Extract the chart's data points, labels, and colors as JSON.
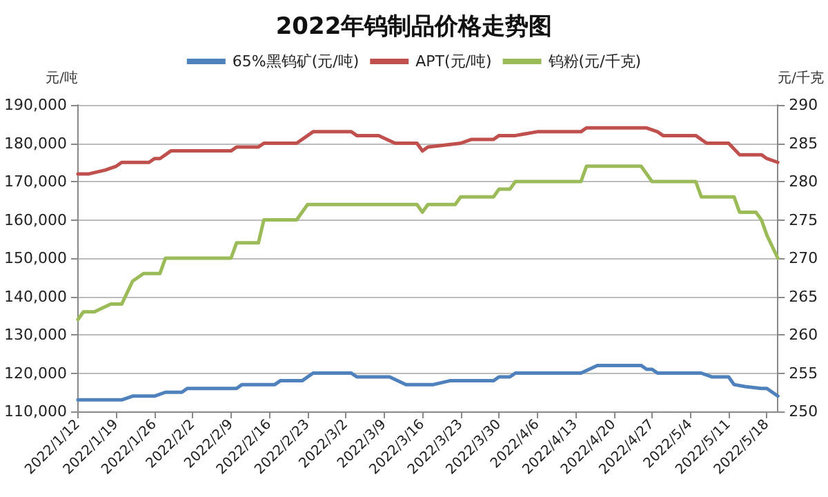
{
  "chart_data": {
    "type": "line",
    "title": "2022年钨制品价格走势图",
    "ylabel": "元/吨",
    "y2label": "元/千克",
    "xlim": [
      "2022-01-12",
      "2022-05-20"
    ],
    "xticks": [
      {
        "value": "2022-01-12",
        "label": "2022/1/12"
      },
      {
        "value": "2022-01-19",
        "label": "2022/1/19"
      },
      {
        "value": "2022-01-26",
        "label": "2022/1/26"
      },
      {
        "value": "2022-02-02",
        "label": "2022/2/2"
      },
      {
        "value": "2022-02-09",
        "label": "2022/2/9"
      },
      {
        "value": "2022-02-16",
        "label": "2022/2/16"
      },
      {
        "value": "2022-02-23",
        "label": "2022/2/23"
      },
      {
        "value": "2022-03-02",
        "label": "2022/3/2"
      },
      {
        "value": "2022-03-09",
        "label": "2022/3/9"
      },
      {
        "value": "2022-03-16",
        "label": "2022/3/16"
      },
      {
        "value": "2022-03-23",
        "label": "2022/3/23"
      },
      {
        "value": "2022-03-30",
        "label": "2022/3/30"
      },
      {
        "value": "2022-04-06",
        "label": "2022/4/6"
      },
      {
        "value": "2022-04-13",
        "label": "2022/4/13"
      },
      {
        "value": "2022-04-20",
        "label": "2022/4/20"
      },
      {
        "value": "2022-04-27",
        "label": "2022/4/27"
      },
      {
        "value": "2022-05-04",
        "label": "2022/5/4"
      },
      {
        "value": "2022-05-11",
        "label": "2022/5/11"
      },
      {
        "value": "2022-05-18",
        "label": "2022/5/18"
      }
    ],
    "ylim": [
      110000,
      190000
    ],
    "yticks": [
      {
        "value": 110000,
        "label": "110,000"
      },
      {
        "value": 120000,
        "label": "120,000"
      },
      {
        "value": 130000,
        "label": "130,000"
      },
      {
        "value": 140000,
        "label": "140,000"
      },
      {
        "value": 150000,
        "label": "150,000"
      },
      {
        "value": 160000,
        "label": "160,000"
      },
      {
        "value": 170000,
        "label": "170,000"
      },
      {
        "value": 180000,
        "label": "180,000"
      },
      {
        "value": 190000,
        "label": "190,000"
      }
    ],
    "y2lim": [
      250,
      290
    ],
    "y2ticks": [
      250,
      255,
      260,
      265,
      270,
      275,
      280,
      285,
      290
    ],
    "grid": "y",
    "legend": "top",
    "marker": "none",
    "line_style": "solid",
    "series": [
      {
        "name": "65%黑钨矿(元/吨)",
        "color": "#4f81bd",
        "x": [
          "2022-01-12",
          "2022-01-20",
          "2022-01-22",
          "2022-01-26",
          "2022-01-28",
          "2022-01-31",
          "2022-02-01",
          "2022-02-10",
          "2022-02-11",
          "2022-02-17",
          "2022-02-18",
          "2022-02-22",
          "2022-02-24",
          "2022-03-03",
          "2022-03-04",
          "2022-03-10",
          "2022-03-13",
          "2022-03-18",
          "2022-03-21",
          "2022-03-29",
          "2022-03-30",
          "2022-04-01",
          "2022-04-02",
          "2022-04-14",
          "2022-04-17",
          "2022-04-25",
          "2022-04-26",
          "2022-04-27",
          "2022-04-28",
          "2022-05-06",
          "2022-05-08",
          "2022-05-11",
          "2022-05-12",
          "2022-05-14",
          "2022-05-17",
          "2022-05-18",
          "2022-05-20"
        ],
        "values": [
          113000,
          113000,
          114000,
          114000,
          115000,
          115000,
          116000,
          116000,
          117000,
          117000,
          118000,
          118000,
          120000,
          120000,
          119000,
          119000,
          117000,
          117000,
          118000,
          118000,
          119000,
          119000,
          120000,
          120000,
          122000,
          122000,
          121000,
          121000,
          120000,
          120000,
          119000,
          119000,
          117000,
          116500,
          116000,
          116000,
          114000
        ]
      },
      {
        "name": "APT(元/吨)",
        "color": "#c0504d",
        "x": [
          "2022-01-12",
          "2022-01-14",
          "2022-01-17",
          "2022-01-19",
          "2022-01-20",
          "2022-01-25",
          "2022-01-26",
          "2022-01-27",
          "2022-01-29",
          "2022-02-09",
          "2022-02-10",
          "2022-02-14",
          "2022-02-15",
          "2022-02-21",
          "2022-02-24",
          "2022-03-03",
          "2022-03-04",
          "2022-03-08",
          "2022-03-11",
          "2022-03-15",
          "2022-03-16",
          "2022-03-17",
          "2022-03-23",
          "2022-03-25",
          "2022-03-29",
          "2022-03-30",
          "2022-04-02",
          "2022-04-06",
          "2022-04-14",
          "2022-04-15",
          "2022-04-26",
          "2022-04-28",
          "2022-04-29",
          "2022-05-05",
          "2022-05-07",
          "2022-05-11",
          "2022-05-13",
          "2022-05-17",
          "2022-05-18",
          "2022-05-20"
        ],
        "values": [
          172000,
          172000,
          173000,
          174000,
          175000,
          175000,
          176000,
          176000,
          178000,
          178000,
          179000,
          179000,
          180000,
          180000,
          183000,
          183000,
          182000,
          182000,
          180000,
          180000,
          178000,
          179000,
          180000,
          181000,
          181000,
          182000,
          182000,
          183000,
          183000,
          184000,
          184000,
          183000,
          182000,
          182000,
          180000,
          180000,
          177000,
          177000,
          176000,
          175000
        ]
      },
      {
        "name": "钨粉(元/千克)",
        "color": "#9bbb59",
        "axis": "y2",
        "x": [
          "2022-01-12",
          "2022-01-13",
          "2022-01-15",
          "2022-01-18",
          "2022-01-20",
          "2022-01-22",
          "2022-01-24",
          "2022-01-27",
          "2022-01-28",
          "2022-02-09",
          "2022-02-10",
          "2022-02-14",
          "2022-02-15",
          "2022-02-21",
          "2022-02-23",
          "2022-03-15",
          "2022-03-16",
          "2022-03-17",
          "2022-03-22",
          "2022-03-23",
          "2022-03-29",
          "2022-03-30",
          "2022-04-01",
          "2022-04-02",
          "2022-04-14",
          "2022-04-15",
          "2022-04-25",
          "2022-04-27",
          "2022-05-05",
          "2022-05-06",
          "2022-05-12",
          "2022-05-13",
          "2022-05-16",
          "2022-05-17",
          "2022-05-18",
          "2022-05-20"
        ],
        "values": [
          262,
          263,
          263,
          264,
          264,
          267,
          268,
          268,
          270,
          270,
          272,
          272,
          275,
          275,
          277,
          277,
          276,
          277,
          277,
          278,
          278,
          279,
          279,
          280,
          280,
          282,
          282,
          280,
          280,
          278,
          278,
          276,
          276,
          275,
          273,
          270
        ]
      }
    ]
  }
}
